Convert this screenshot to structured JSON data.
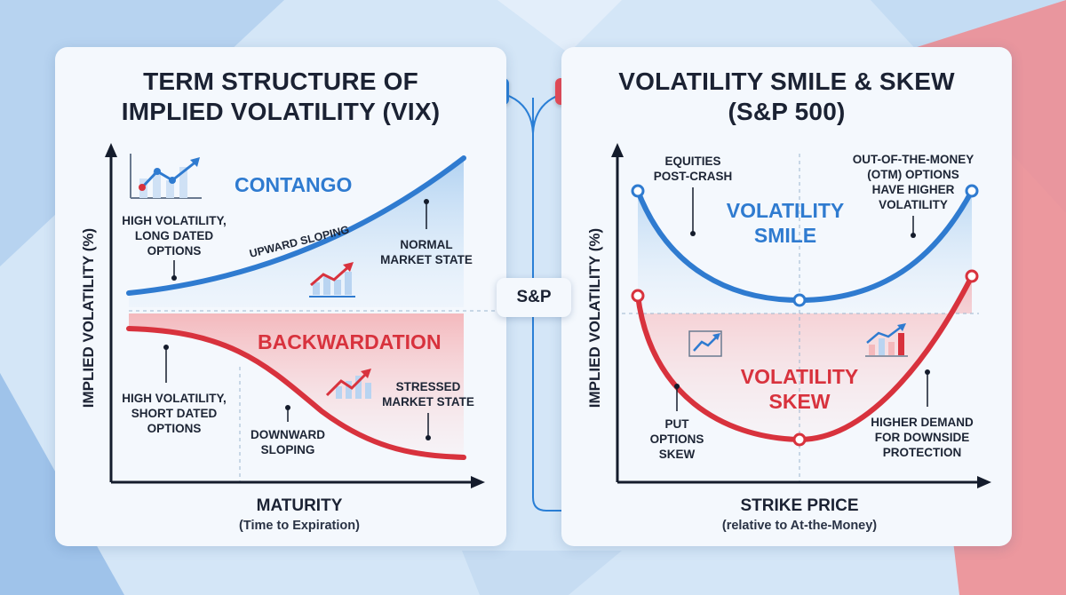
{
  "left_panel": {
    "title_line1": "TERM STRUCTURE OF",
    "title_line2": "IMPLIED VOLATILITY (VIX)",
    "y_axis_label": "IMPLIED VOLATILITY (%)",
    "x_axis_label": "MATURITY",
    "x_axis_sublabel": "(Time to Expiration)",
    "contango": {
      "heading": "CONTANGO",
      "slope_label": "UPWARD SLOPING",
      "note_left": [
        "HIGH VOLATILITY,",
        "LONG DATED",
        "OPTIONS"
      ],
      "note_right": [
        "NORMAL",
        "MARKET STATE"
      ]
    },
    "backwardation": {
      "heading": "BACKWARDATION",
      "note_left": [
        "HIGH VOLATILITY,",
        "SHORT DATED",
        "OPTIONS"
      ],
      "note_mid": [
        "DOWNWARD",
        "SLOPING"
      ],
      "note_right": [
        "STRESSED",
        "MARKET STATE"
      ]
    }
  },
  "right_panel": {
    "title_line1": "VOLATILITY SMILE & SKEW",
    "title_line2": "(S&P 500)",
    "y_axis_label": "IMPLIED VOLATILITY (%)",
    "x_axis_label": "STRIKE PRICE",
    "x_axis_sublabel": "(relative to At-the-Money)",
    "smile": {
      "heading_line1": "VOLATILITY",
      "heading_line2": "SMILE",
      "note_left": [
        "EQUITIES",
        "POST-CRASH"
      ],
      "note_right": [
        "OUT-OF-THE-MONEY",
        "(OTM) OPTIONS",
        "HAVE HIGHER",
        "VOLATILITY"
      ]
    },
    "skew": {
      "heading_line1": "VOLATILITY",
      "heading_line2": "SKEW",
      "note_left": [
        "PUT",
        "OPTIONS",
        "SKEW"
      ],
      "note_right": [
        "HIGHER DEMAND",
        "FOR DOWNSIDE",
        "PROTECTION"
      ]
    }
  },
  "center_badge": "S&P",
  "colors": {
    "blue": "#2f7bd0",
    "red": "#d8323d",
    "background": "#d4e6f7",
    "panel": "#f4f8fd"
  }
}
